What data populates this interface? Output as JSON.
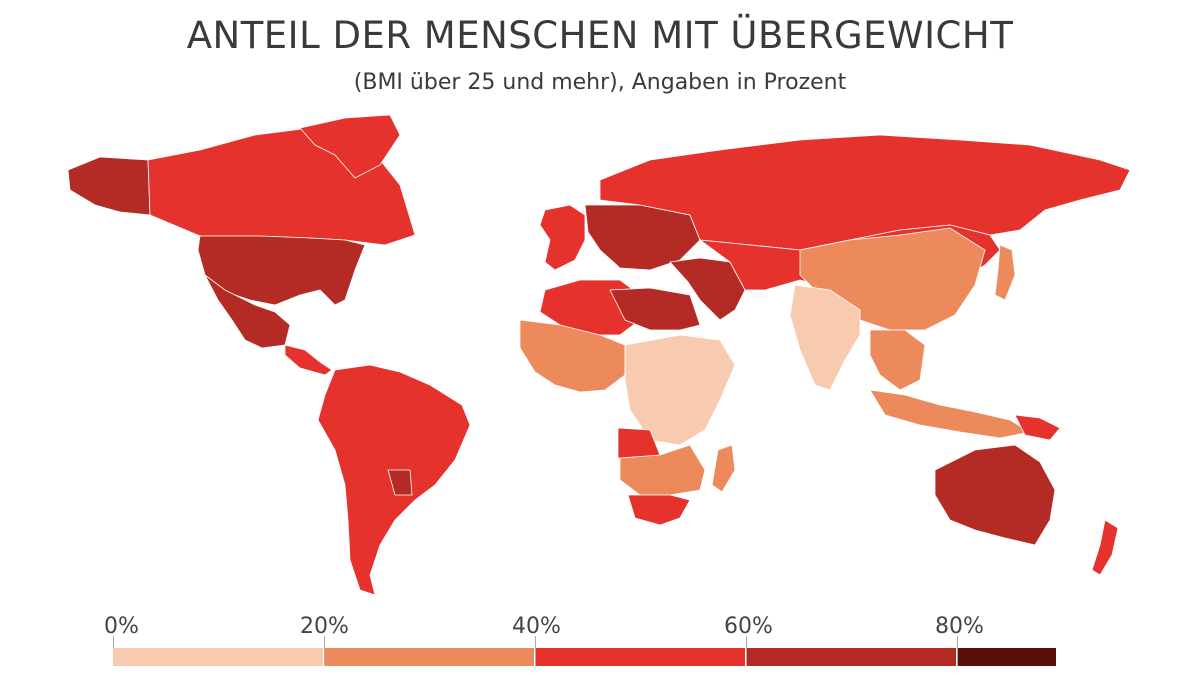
{
  "title": "ANTEIL DER MENSCHEN MIT ÜBERGEWICHT",
  "subtitle": "(BMI über 25 und mehr), Angaben in Prozent",
  "legend": {
    "labels": [
      "0%",
      "20%",
      "40%",
      "60%",
      "80%"
    ],
    "bins": [
      {
        "range": "0–20%",
        "color": "#f8cbb0"
      },
      {
        "range": "20–40%",
        "color": "#ec8a5c"
      },
      {
        "range": "40–60%",
        "color": "#e5322d"
      },
      {
        "range": "60–80%",
        "color": "#b42a24"
      },
      {
        "range": "80%+",
        "color": "#5a0f0b"
      }
    ]
  },
  "regions": [
    {
      "name": "Alaska",
      "bin": 3
    },
    {
      "name": "Kanada",
      "bin": 2
    },
    {
      "name": "Grönland",
      "bin": 2
    },
    {
      "name": "USA",
      "bin": 3
    },
    {
      "name": "Mexiko",
      "bin": 3
    },
    {
      "name": "Mittelamerika",
      "bin": 2
    },
    {
      "name": "Südamerika",
      "bin": 2
    },
    {
      "name": "Paraguay",
      "bin": 3
    },
    {
      "name": "Westeuropa",
      "bin": 2
    },
    {
      "name": "Mitteleuropa",
      "bin": 3
    },
    {
      "name": "Russland",
      "bin": 2
    },
    {
      "name": "Naher Osten",
      "bin": 3
    },
    {
      "name": "Nordafrika",
      "bin": 2
    },
    {
      "name": "Libyen / Ägypten",
      "bin": 3
    },
    {
      "name": "Westafrika",
      "bin": 1
    },
    {
      "name": "Zentral- & Ostafrika",
      "bin": 0
    },
    {
      "name": "Angola",
      "bin": 2
    },
    {
      "name": "Südliches Afrika",
      "bin": 1
    },
    {
      "name": "Südafrika",
      "bin": 2
    },
    {
      "name": "Madagaskar",
      "bin": 1
    },
    {
      "name": "Zentralasien",
      "bin": 2
    },
    {
      "name": "China",
      "bin": 1
    },
    {
      "name": "Indien",
      "bin": 0
    },
    {
      "name": "Südostasien",
      "bin": 1
    },
    {
      "name": "Japan",
      "bin": 1
    },
    {
      "name": "Indonesien",
      "bin": 1
    },
    {
      "name": "Papua-Neuguinea",
      "bin": 2
    },
    {
      "name": "Australien",
      "bin": 3
    },
    {
      "name": "Neuseeland",
      "bin": 2
    }
  ]
}
